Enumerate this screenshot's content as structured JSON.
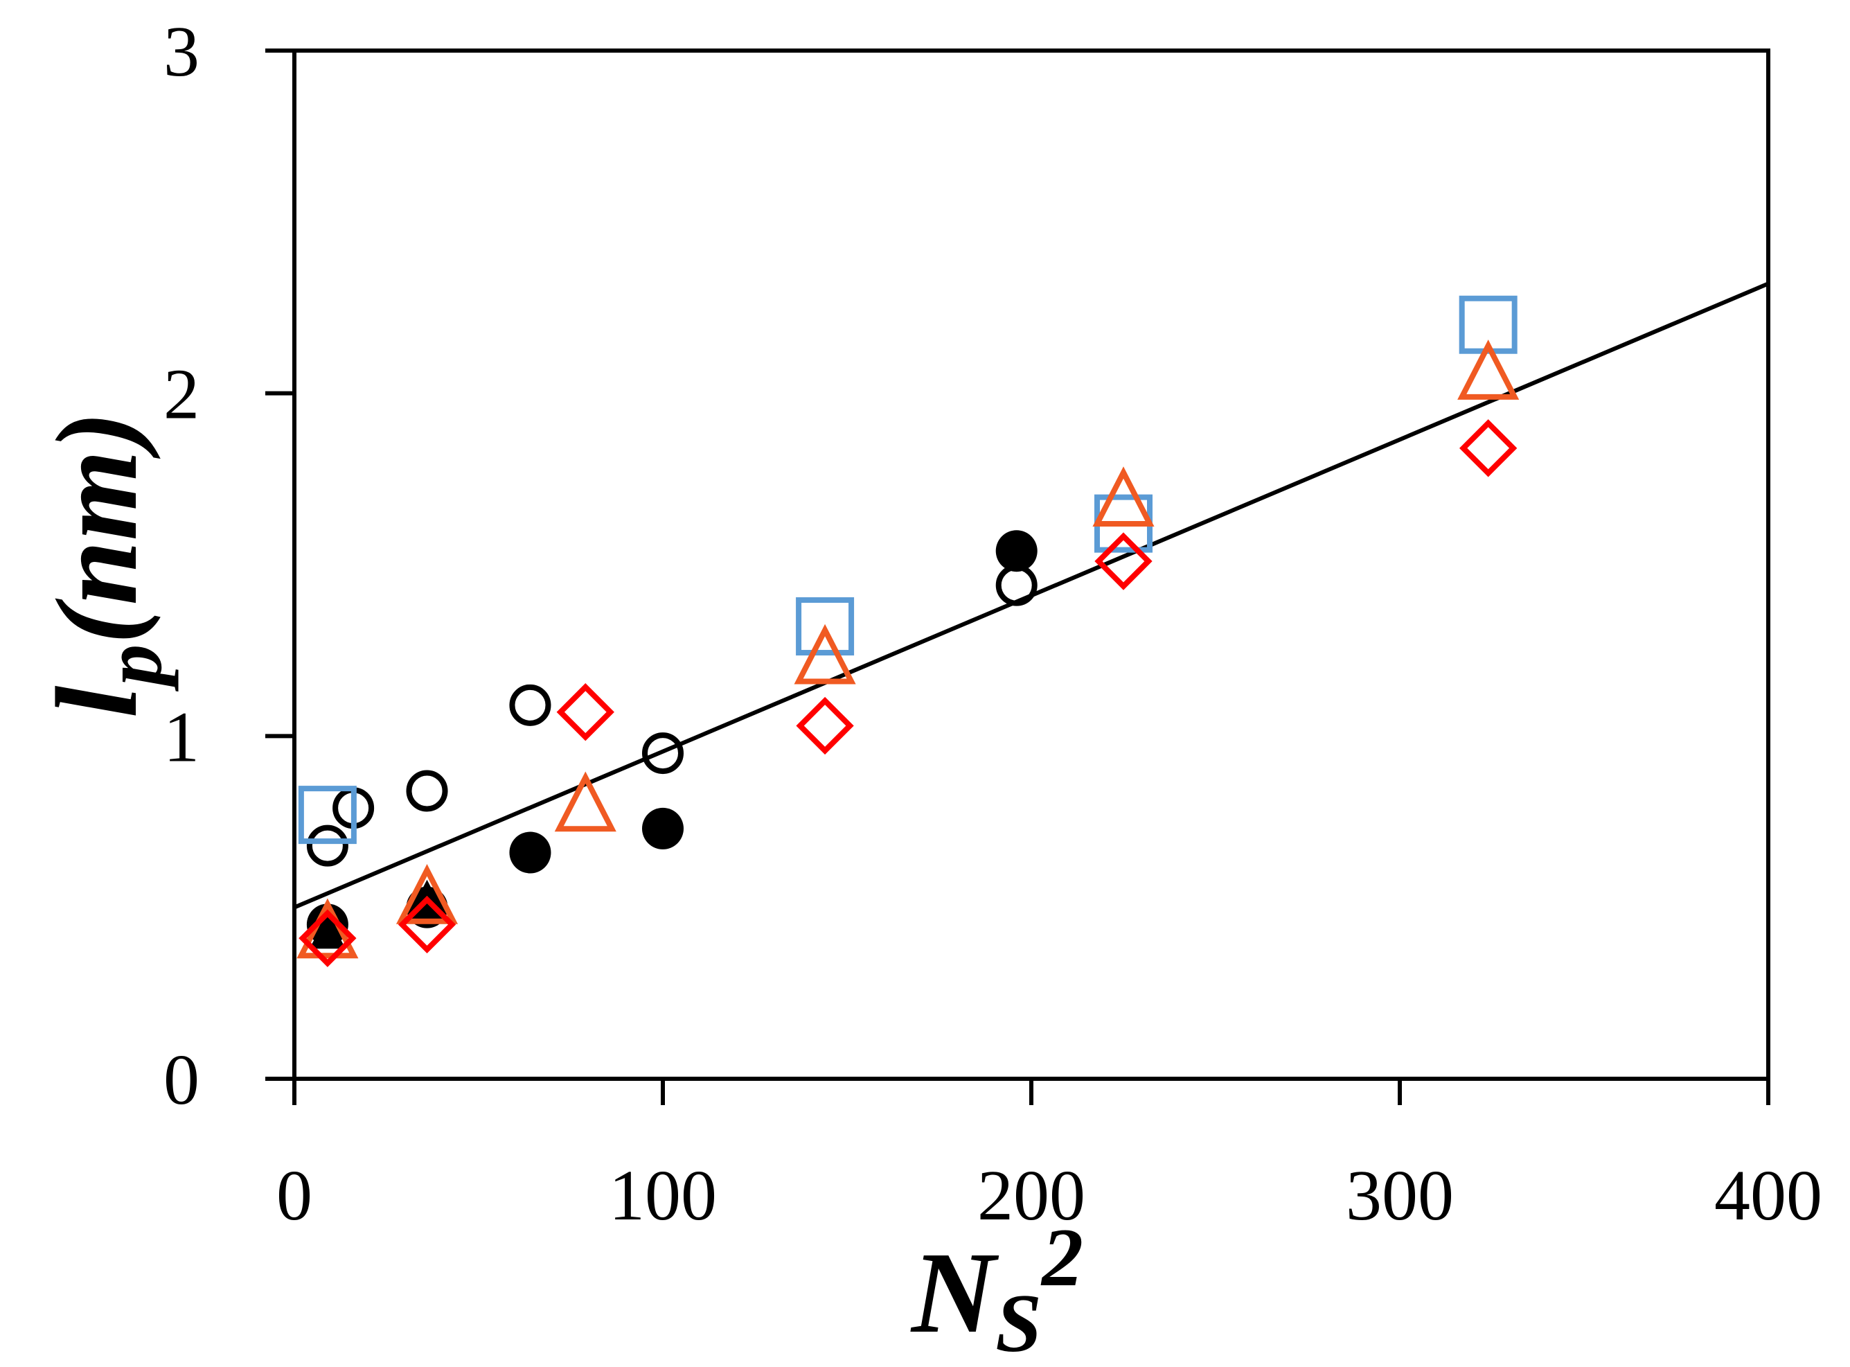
{
  "chart_data": {
    "type": "scatter",
    "title": "",
    "xlabel": {
      "main": "N",
      "sub": "S",
      "sup": "2"
    },
    "ylabel": {
      "main": "l",
      "sub": "p",
      "rest": "(nm)"
    },
    "xlim": [
      0,
      400
    ],
    "ylim": [
      0,
      3
    ],
    "xticks": [
      0,
      100,
      200,
      300,
      400
    ],
    "yticks": [
      0,
      1,
      2,
      3
    ],
    "xtick_labels": [
      "0",
      "100",
      "200",
      "300",
      "400"
    ],
    "ytick_labels": [
      "0",
      "1",
      "2",
      "3"
    ],
    "grid": false,
    "legend": "none",
    "series": [
      {
        "name": "open-circle",
        "marker": "circle-open",
        "color": "#000000",
        "points": [
          [
            9,
            0.68
          ],
          [
            16,
            0.79
          ],
          [
            36,
            0.84
          ],
          [
            64,
            1.09
          ],
          [
            100,
            0.95
          ],
          [
            196,
            1.44
          ]
        ]
      },
      {
        "name": "filled-circle",
        "marker": "circle-filled",
        "color": "#000000",
        "points": [
          [
            9,
            0.45
          ],
          [
            36,
            0.5
          ],
          [
            64,
            0.66
          ],
          [
            100,
            0.73
          ],
          [
            196,
            1.54
          ]
        ]
      },
      {
        "name": "filled-triangle",
        "marker": "triangle-filled",
        "color": "#000000",
        "points": [
          [
            9,
            0.42
          ],
          [
            36,
            0.52
          ]
        ]
      },
      {
        "name": "open-square",
        "marker": "square-open",
        "color": "#5b9bd5",
        "points": [
          [
            9,
            0.77
          ],
          [
            144,
            1.32
          ],
          [
            225,
            1.62
          ],
          [
            324,
            2.2
          ]
        ]
      },
      {
        "name": "open-triangle",
        "marker": "triangle-open",
        "color": "#f05a22",
        "points": [
          [
            9,
            0.42
          ],
          [
            36,
            0.52
          ],
          [
            79,
            0.79
          ],
          [
            144,
            1.22
          ],
          [
            225,
            1.68
          ],
          [
            324,
            2.05
          ]
        ]
      },
      {
        "name": "open-diamond",
        "marker": "diamond-open",
        "color": "#ff0000",
        "points": [
          [
            9,
            0.41
          ],
          [
            36,
            0.45
          ],
          [
            79,
            1.07
          ],
          [
            144,
            1.03
          ],
          [
            225,
            1.51
          ],
          [
            324,
            1.84
          ]
        ]
      }
    ],
    "fit_line": {
      "x": [
        0,
        400
      ],
      "y": [
        0.5,
        2.32
      ],
      "color": "#000000"
    }
  }
}
